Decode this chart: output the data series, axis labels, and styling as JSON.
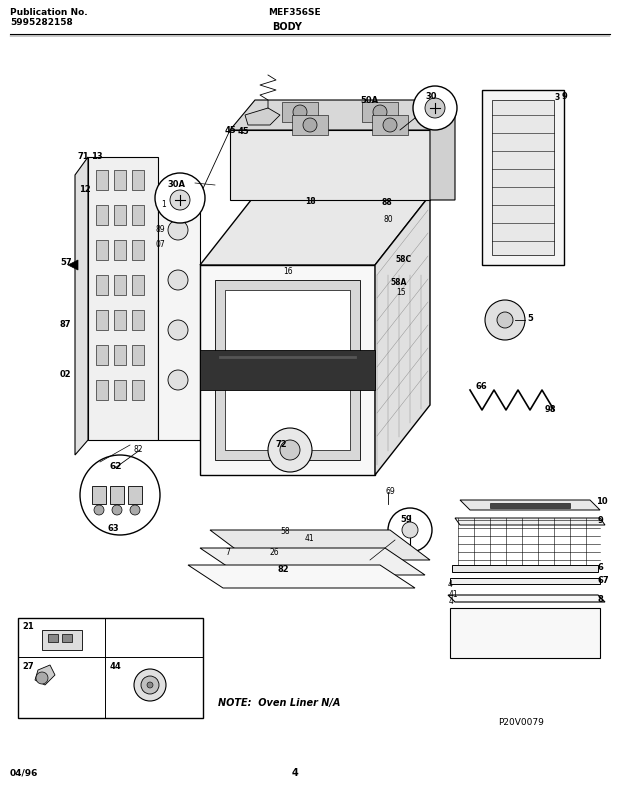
{
  "bg_color": "#ffffff",
  "title_left1": "Publication No.",
  "title_left2": "5995282158",
  "title_center": "MEF356SE",
  "title_section": "BODY",
  "footer_left": "04/96",
  "footer_center": "4",
  "note_text": "NOTE:  Oven Liner N/A",
  "watermark": "P20V0079",
  "fig_width": 6.2,
  "fig_height": 7.91,
  "dpi": 100
}
